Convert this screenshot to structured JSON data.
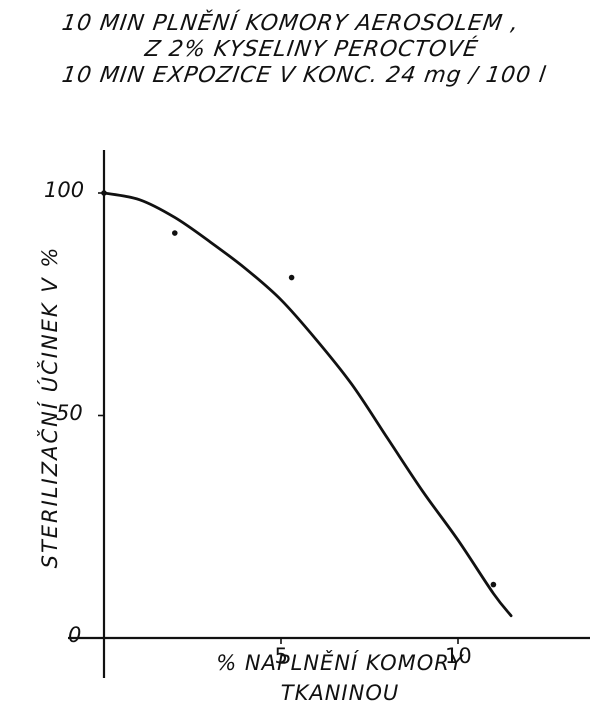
{
  "header": {
    "line1": "10 MIN  PLNĚNÍ KOMORY AEROSOLEM ,",
    "line2": "Z  2% KYSELINY PEROCTOVÉ",
    "line3": "10 MIN  EXPOZICE  V  KONC.  24 mg / 100  l"
  },
  "chart_data": {
    "type": "line",
    "xlabel_line1": "% NAPLNĚNÍ KOMORY",
    "xlabel_line2": "TKANINOU",
    "ylabel": "STERILIZAČNÍ ÚČINEK V %",
    "xlim": [
      0,
      14
    ],
    "ylim": [
      0,
      100
    ],
    "x_ticks": [
      {
        "value": 5,
        "label": "5"
      },
      {
        "value": 10,
        "label": "10"
      }
    ],
    "y_ticks": [
      {
        "value": 0,
        "label": "0"
      },
      {
        "value": 50,
        "label": "50"
      },
      {
        "value": 100,
        "label": "100"
      }
    ],
    "points": [
      {
        "x": 0,
        "y": 100
      },
      {
        "x": 2,
        "y": 91
      },
      {
        "x": 5.3,
        "y": 81
      },
      {
        "x": 11,
        "y": 12
      }
    ],
    "curve": [
      {
        "x": 0,
        "y": 100
      },
      {
        "x": 1,
        "y": 98.5
      },
      {
        "x": 2,
        "y": 94.5
      },
      {
        "x": 3,
        "y": 89
      },
      {
        "x": 4,
        "y": 83
      },
      {
        "x": 5,
        "y": 76
      },
      {
        "x": 6,
        "y": 67
      },
      {
        "x": 7,
        "y": 57
      },
      {
        "x": 8,
        "y": 45
      },
      {
        "x": 9,
        "y": 33
      },
      {
        "x": 10,
        "y": 22
      },
      {
        "x": 11,
        "y": 10
      },
      {
        "x": 11.5,
        "y": 5
      }
    ],
    "grid": false,
    "colors": {
      "ink": "#111111"
    }
  }
}
